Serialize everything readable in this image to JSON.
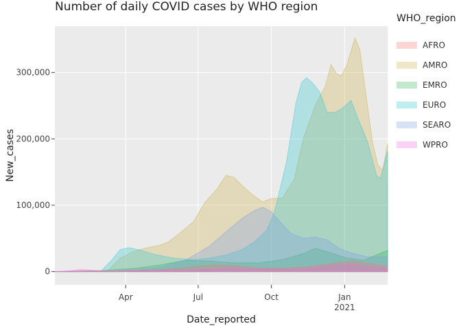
{
  "page": {
    "title": "Number of daily COVID cases by WHO region"
  },
  "legend": {
    "title": "WHO_region",
    "items": [
      {
        "label": "AFRO",
        "color": "#f8766d"
      },
      {
        "label": "AMRO",
        "color": "#c9b04a"
      },
      {
        "label": "EMRO",
        "color": "#34b35c"
      },
      {
        "label": "EURO",
        "color": "#2cc7d2"
      },
      {
        "label": "SEARO",
        "color": "#7d9fe6"
      },
      {
        "label": "WPRO",
        "color": "#f06ae0"
      }
    ]
  },
  "chart_data": {
    "type": "area",
    "title": "Number of daily COVID cases by WHO region",
    "xlabel": "Date_reported",
    "ylabel": "New_cases",
    "xlim": [
      "2020-01-03",
      "2021-02-24"
    ],
    "ylim": [
      -20000,
      370000
    ],
    "grid": true,
    "legend_position": "right",
    "x_ticks": [
      {
        "date": "2020-04-01",
        "label": "Apr"
      },
      {
        "date": "2020-07-01",
        "label": "Jul"
      },
      {
        "date": "2020-10-01",
        "label": "Oct"
      },
      {
        "date": "2021-01-01",
        "label": "Jan",
        "sublabel": "2021"
      }
    ],
    "y_ticks": [
      {
        "value": 0,
        "label": "0"
      },
      {
        "value": 100000,
        "label": "100,000"
      },
      {
        "value": 200000,
        "label": "200,000"
      },
      {
        "value": 300000,
        "label": "300,000"
      }
    ],
    "series": [
      {
        "name": "AFRO",
        "points": [
          [
            "2020-01-03",
            0
          ],
          [
            "2020-03-15",
            100
          ],
          [
            "2020-04-15",
            1000
          ],
          [
            "2020-05-15",
            2500
          ],
          [
            "2020-06-15",
            6000
          ],
          [
            "2020-07-20",
            10000
          ],
          [
            "2020-08-15",
            9000
          ],
          [
            "2020-09-15",
            5000
          ],
          [
            "2020-10-15",
            5000
          ],
          [
            "2020-11-15",
            7000
          ],
          [
            "2020-12-15",
            12000
          ],
          [
            "2021-01-10",
            16000
          ],
          [
            "2021-02-01",
            12000
          ],
          [
            "2021-02-24",
            8000
          ]
        ]
      },
      {
        "name": "AMRO",
        "points": [
          [
            "2020-01-03",
            0
          ],
          [
            "2020-03-10",
            2000
          ],
          [
            "2020-03-25",
            20000
          ],
          [
            "2020-04-10",
            30000
          ],
          [
            "2020-04-25",
            35000
          ],
          [
            "2020-05-15",
            40000
          ],
          [
            "2020-05-25",
            45000
          ],
          [
            "2020-06-10",
            60000
          ],
          [
            "2020-06-25",
            75000
          ],
          [
            "2020-07-10",
            105000
          ],
          [
            "2020-07-25",
            125000
          ],
          [
            "2020-08-05",
            145000
          ],
          [
            "2020-08-15",
            142000
          ],
          [
            "2020-08-25",
            130000
          ],
          [
            "2020-09-05",
            118000
          ],
          [
            "2020-09-20",
            105000
          ],
          [
            "2020-10-01",
            110000
          ],
          [
            "2020-10-15",
            111000
          ],
          [
            "2020-10-30",
            140000
          ],
          [
            "2020-11-10",
            200000
          ],
          [
            "2020-11-25",
            250000
          ],
          [
            "2020-12-08",
            280000
          ],
          [
            "2020-12-15",
            312000
          ],
          [
            "2020-12-22",
            298000
          ],
          [
            "2020-12-28",
            295000
          ],
          [
            "2021-01-04",
            312000
          ],
          [
            "2021-01-14",
            352000
          ],
          [
            "2021-01-20",
            335000
          ],
          [
            "2021-01-28",
            265000
          ],
          [
            "2021-02-05",
            195000
          ],
          [
            "2021-02-12",
            160000
          ],
          [
            "2021-02-18",
            153000
          ],
          [
            "2021-02-24",
            193000
          ]
        ]
      },
      {
        "name": "EMRO",
        "points": [
          [
            "2020-01-03",
            0
          ],
          [
            "2020-03-01",
            1000
          ],
          [
            "2020-03-20",
            3000
          ],
          [
            "2020-04-15",
            5000
          ],
          [
            "2020-05-15",
            10000
          ],
          [
            "2020-06-15",
            17000
          ],
          [
            "2020-07-15",
            16000
          ],
          [
            "2020-08-15",
            13000
          ],
          [
            "2020-09-15",
            13000
          ],
          [
            "2020-10-15",
            18000
          ],
          [
            "2020-11-10",
            27000
          ],
          [
            "2020-11-25",
            35000
          ],
          [
            "2020-12-15",
            28000
          ],
          [
            "2021-01-05",
            20000
          ],
          [
            "2021-01-25",
            17000
          ],
          [
            "2021-02-10",
            25000
          ],
          [
            "2021-02-24",
            32000
          ]
        ]
      },
      {
        "name": "EURO",
        "points": [
          [
            "2020-01-03",
            0
          ],
          [
            "2020-03-01",
            500
          ],
          [
            "2020-03-15",
            18000
          ],
          [
            "2020-03-25",
            33000
          ],
          [
            "2020-04-05",
            36000
          ],
          [
            "2020-04-20",
            32000
          ],
          [
            "2020-05-10",
            25000
          ],
          [
            "2020-06-01",
            20000
          ],
          [
            "2020-06-25",
            18000
          ],
          [
            "2020-07-15",
            20000
          ],
          [
            "2020-08-05",
            25000
          ],
          [
            "2020-08-25",
            33000
          ],
          [
            "2020-09-10",
            45000
          ],
          [
            "2020-09-25",
            62000
          ],
          [
            "2020-10-05",
            90000
          ],
          [
            "2020-10-20",
            165000
          ],
          [
            "2020-11-01",
            255000
          ],
          [
            "2020-11-08",
            285000
          ],
          [
            "2020-11-14",
            292000
          ],
          [
            "2020-11-22",
            284000
          ],
          [
            "2020-12-01",
            270000
          ],
          [
            "2020-12-10",
            240000
          ],
          [
            "2020-12-20",
            240000
          ],
          [
            "2020-12-28",
            245000
          ],
          [
            "2021-01-02",
            250000
          ],
          [
            "2021-01-09",
            258000
          ],
          [
            "2021-01-18",
            230000
          ],
          [
            "2021-01-30",
            195000
          ],
          [
            "2021-02-10",
            145000
          ],
          [
            "2021-02-15",
            140000
          ],
          [
            "2021-02-24",
            182000
          ]
        ]
      },
      {
        "name": "SEARO",
        "points": [
          [
            "2020-01-03",
            0
          ],
          [
            "2020-03-15",
            500
          ],
          [
            "2020-04-15",
            2000
          ],
          [
            "2020-05-15",
            6000
          ],
          [
            "2020-06-15",
            17000
          ],
          [
            "2020-07-15",
            38000
          ],
          [
            "2020-08-05",
            60000
          ],
          [
            "2020-08-25",
            80000
          ],
          [
            "2020-09-10",
            92000
          ],
          [
            "2020-09-20",
            97000
          ],
          [
            "2020-10-01",
            90000
          ],
          [
            "2020-10-10",
            78000
          ],
          [
            "2020-10-25",
            58000
          ],
          [
            "2020-11-10",
            50000
          ],
          [
            "2020-11-25",
            52000
          ],
          [
            "2020-12-10",
            48000
          ],
          [
            "2020-12-25",
            35000
          ],
          [
            "2021-01-10",
            28000
          ],
          [
            "2021-01-30",
            22000
          ],
          [
            "2021-02-24",
            22000
          ]
        ]
      },
      {
        "name": "WPRO",
        "points": [
          [
            "2020-01-03",
            0
          ],
          [
            "2020-01-25",
            1500
          ],
          [
            "2020-02-05",
            3000
          ],
          [
            "2020-02-18",
            2000
          ],
          [
            "2020-03-01",
            800
          ],
          [
            "2020-03-20",
            1000
          ],
          [
            "2020-04-15",
            2000
          ],
          [
            "2020-05-15",
            2000
          ],
          [
            "2020-06-15",
            1500
          ],
          [
            "2020-07-15",
            3500
          ],
          [
            "2020-08-10",
            5500
          ],
          [
            "2020-09-10",
            4000
          ],
          [
            "2020-10-15",
            3000
          ],
          [
            "2020-11-15",
            5000
          ],
          [
            "2020-12-15",
            9000
          ],
          [
            "2021-01-10",
            11000
          ],
          [
            "2021-01-25",
            9000
          ],
          [
            "2021-02-24",
            5000
          ]
        ]
      }
    ]
  }
}
